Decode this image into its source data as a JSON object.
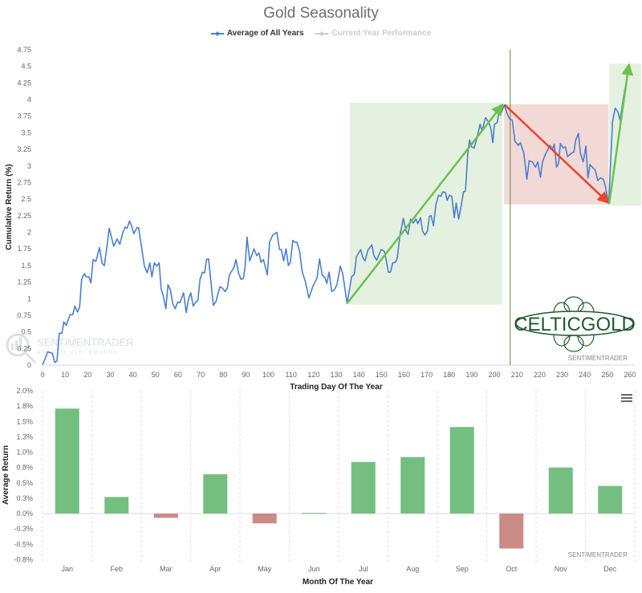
{
  "title": "Gold Seasonality",
  "legend": [
    {
      "label": "Average of All Years",
      "color": "#4a7fd0",
      "active": true
    },
    {
      "label": "Current Year Performance",
      "color": "#cccccc",
      "active": false
    }
  ],
  "menu_icon": "hamburger-menu-icon",
  "watermarks": {
    "sentimentrader_top": "SENTIMENTRADER",
    "sentimentrader_bottom": "SENTIMENTRADER",
    "logo_text": "SENTIMENTRADER",
    "logo_tagline": "Analysis over Emotion",
    "celticgold": "CELTICGOLD"
  },
  "chart_data": [
    {
      "type": "line",
      "title": "Gold Seasonality",
      "xlabel": "Trading Day Of The Year",
      "ylabel": "Cumulative Return (%)",
      "xlim": [
        0,
        260
      ],
      "ylim": [
        0,
        4.75
      ],
      "xticks": [
        "0",
        "10",
        "20",
        "30",
        "40",
        "50",
        "60",
        "70",
        "80",
        "90",
        "100",
        "110",
        "120",
        "130",
        "140",
        "150",
        "160",
        "170",
        "180",
        "190",
        "200",
        "210",
        "220",
        "230",
        "240",
        "250",
        "260"
      ],
      "yticks": [
        "0",
        "0.25",
        "0.5",
        "0.75",
        "1",
        "1.25",
        "1.5",
        "1.75",
        "2",
        "2.25",
        "2.5",
        "2.75",
        "3",
        "3.25",
        "3.5",
        "3.75",
        "4",
        "4.25",
        "4.5",
        "4.75"
      ],
      "grid": false,
      "legend_position": "top",
      "series": [
        {
          "name": "Average of All Years",
          "color": "#4a7fd0",
          "points": [
            [
              0,
              0
            ],
            [
              2.3,
              0.2
            ],
            [
              4.3,
              0.18
            ],
            [
              5.4,
              0.04
            ],
            [
              6.4,
              0.06
            ],
            [
              7.4,
              0.48
            ],
            [
              8.6,
              0.48
            ],
            [
              9.4,
              0.65
            ],
            [
              10.5,
              0.6
            ],
            [
              12.2,
              0.76
            ],
            [
              13.4,
              0.76
            ],
            [
              14.3,
              0.89
            ],
            [
              15.5,
              0.8
            ],
            [
              16.4,
              0.87
            ],
            [
              17.3,
              1.29
            ],
            [
              18.5,
              1.38
            ],
            [
              19.3,
              1.33
            ],
            [
              20.5,
              1.33
            ],
            [
              21.4,
              1.24
            ],
            [
              22.4,
              1.59
            ],
            [
              23.6,
              1.56
            ],
            [
              25.2,
              1.77
            ],
            [
              26.4,
              1.53
            ],
            [
              27.4,
              1.5
            ],
            [
              29.5,
              2.06
            ],
            [
              31.5,
              1.79
            ],
            [
              33,
              1.9
            ],
            [
              34.2,
              1.82
            ],
            [
              35.6,
              2
            ],
            [
              36.6,
              2.08
            ],
            [
              37.4,
              2.06
            ],
            [
              38.5,
              2.17
            ],
            [
              39.4,
              2.1
            ],
            [
              40.4,
              1.98
            ],
            [
              41.8,
              2.07
            ],
            [
              42.5,
              2.07
            ],
            [
              45.1,
              1.49
            ],
            [
              46.3,
              1.39
            ],
            [
              47.5,
              1.54
            ],
            [
              48.4,
              1.33
            ],
            [
              49.5,
              1.54
            ],
            [
              50.6,
              1.49
            ],
            [
              51.6,
              1.54
            ],
            [
              52.5,
              1.15
            ],
            [
              53.4,
              1.05
            ],
            [
              54.6,
              0.85
            ],
            [
              55.5,
              1.21
            ],
            [
              56.6,
              1.13
            ],
            [
              57.6,
              0.93
            ],
            [
              58.7,
              0.85
            ],
            [
              59.8,
              0.95
            ],
            [
              60.8,
              0.94
            ],
            [
              62.4,
              1.09
            ],
            [
              63.6,
              0.79
            ],
            [
              64.6,
              0.99
            ],
            [
              65.6,
              1.09
            ],
            [
              66.7,
              0.89
            ],
            [
              67.8,
              0.95
            ],
            [
              68.8,
              0.98
            ],
            [
              69.7,
              1.29
            ],
            [
              70.8,
              1.4
            ],
            [
              71.7,
              1.39
            ],
            [
              72.6,
              1.59
            ],
            [
              73.5,
              1.6
            ],
            [
              75.6,
              0.9
            ],
            [
              76.8,
              0.96
            ],
            [
              78.5,
              1.18
            ],
            [
              79.6,
              1.16
            ],
            [
              80.8,
              1.11
            ],
            [
              81.8,
              1.16
            ],
            [
              82.7,
              1.36
            ],
            [
              84.7,
              1.47
            ],
            [
              85.6,
              1.59
            ],
            [
              86.8,
              1.38
            ],
            [
              87.9,
              1.29
            ],
            [
              88.9,
              1.31
            ],
            [
              89.7,
              1.49
            ],
            [
              90.5,
              1.93
            ],
            [
              91.7,
              1.57
            ],
            [
              93.6,
              1.75
            ],
            [
              94.8,
              1.65
            ],
            [
              95.8,
              1.69
            ],
            [
              96.7,
              1.55
            ],
            [
              97.8,
              1.59
            ],
            [
              99.5,
              1.36
            ],
            [
              100.5,
              1.85
            ],
            [
              101.9,
              1.96
            ],
            [
              103.7,
              2
            ],
            [
              104.9,
              1.74
            ],
            [
              105.7,
              1.74
            ],
            [
              106.7,
              1.57
            ],
            [
              107.8,
              1.75
            ],
            [
              108.8,
              1.5
            ],
            [
              109.7,
              1.55
            ],
            [
              110.8,
              1.88
            ],
            [
              111.6,
              1.85
            ],
            [
              112.6,
              1.85
            ],
            [
              113.8,
              1.71
            ],
            [
              114.9,
              1.41
            ],
            [
              116.4,
              1.25
            ],
            [
              117.9,
              1.01
            ],
            [
              119.7,
              1.19
            ],
            [
              121.5,
              1.31
            ],
            [
              122.6,
              1.6
            ],
            [
              123.8,
              1.36
            ],
            [
              125,
              1.32
            ],
            [
              125.8,
              1.23
            ],
            [
              126.8,
              1.4
            ],
            [
              128,
              1.11
            ],
            [
              129.1,
              1.13
            ],
            [
              130.3,
              1.21
            ],
            [
              131.8,
              1.49
            ],
            [
              132.9,
              1.37
            ],
            [
              134.8,
              0.93
            ],
            [
              136.8,
              1.33
            ],
            [
              138,
              1.37
            ],
            [
              138.9,
              1.63
            ],
            [
              140.8,
              1.74
            ],
            [
              141.9,
              1.61
            ],
            [
              142.8,
              1.57
            ],
            [
              144,
              1.73
            ],
            [
              145.7,
              1.81
            ],
            [
              146.7,
              1.65
            ],
            [
              147.9,
              1.58
            ],
            [
              149.9,
              1.74
            ],
            [
              151.4,
              1.71
            ],
            [
              153.1,
              1.4
            ],
            [
              154,
              1.4
            ],
            [
              155,
              1.54
            ],
            [
              156.2,
              1.55
            ],
            [
              157,
              1.61
            ],
            [
              158.2,
              1.96
            ],
            [
              159.7,
              2.21
            ],
            [
              160.9,
              2.02
            ],
            [
              161.8,
              1.97
            ],
            [
              162.9,
              2.2
            ],
            [
              164.1,
              2.14
            ],
            [
              165.3,
              2.2
            ],
            [
              166.1,
              2.13
            ],
            [
              167.3,
              2.22
            ],
            [
              168.2,
              2.02
            ],
            [
              169.2,
              1.96
            ],
            [
              170.4,
              2.02
            ],
            [
              171.2,
              2.24
            ],
            [
              172,
              2.25
            ],
            [
              173,
              2.1
            ],
            [
              174.1,
              2.42
            ],
            [
              175.3,
              2.56
            ],
            [
              176.3,
              2.54
            ],
            [
              177.1,
              2.61
            ],
            [
              178.3,
              2.6
            ],
            [
              179.1,
              2.48
            ],
            [
              180.1,
              2.56
            ],
            [
              181.2,
              2.54
            ],
            [
              182.2,
              2.22
            ],
            [
              183.1,
              2.44
            ],
            [
              184.2,
              2.2
            ],
            [
              185.4,
              2.42
            ],
            [
              186.3,
              2.61
            ],
            [
              187.2,
              2.62
            ],
            [
              188.2,
              3.19
            ],
            [
              189,
              3.39
            ],
            [
              189.8,
              3.29
            ],
            [
              191,
              3.27
            ],
            [
              192.2,
              3.41
            ],
            [
              193.7,
              3.63
            ],
            [
              194.5,
              3.53
            ],
            [
              196.1,
              3.73
            ],
            [
              197.6,
              3.65
            ],
            [
              198.5,
              3.55
            ],
            [
              199.3,
              3.35
            ],
            [
              200,
              3.63
            ],
            [
              201.2,
              3.65
            ],
            [
              202,
              3.81
            ],
            [
              203.2,
              3.81
            ],
            [
              204.4,
              3.92
            ],
            [
              205.6,
              3.79
            ],
            [
              206.7,
              3.71
            ],
            [
              207.9,
              3.69
            ],
            [
              209.1,
              3.37
            ],
            [
              210.6,
              3.31
            ],
            [
              211.5,
              3.35
            ],
            [
              213,
              3.19
            ],
            [
              214.4,
              2.8
            ],
            [
              215.4,
              3.08
            ],
            [
              216.8,
              3.06
            ],
            [
              218.2,
              2.98
            ],
            [
              219.2,
              3.06
            ],
            [
              220.4,
              2.83
            ],
            [
              221.3,
              3.06
            ],
            [
              222.5,
              3.17
            ],
            [
              223.7,
              3.25
            ],
            [
              224.5,
              3.31
            ],
            [
              225.7,
              3.25
            ],
            [
              226.5,
              3.33
            ],
            [
              227.5,
              2.98
            ],
            [
              228.4,
              3.04
            ],
            [
              229.2,
              3.34
            ],
            [
              230.4,
              3.27
            ],
            [
              231.4,
              3.29
            ],
            [
              232.4,
              3.14
            ],
            [
              234,
              3.19
            ],
            [
              235.2,
              3.21
            ],
            [
              236,
              3.39
            ],
            [
              237.2,
              3.49
            ],
            [
              238.1,
              3.19
            ],
            [
              239.3,
              3.06
            ],
            [
              240.5,
              3.3
            ],
            [
              241.4,
              2.82
            ],
            [
              242.3,
              3.02
            ],
            [
              243.4,
              2.98
            ],
            [
              244.6,
              2.94
            ],
            [
              245.8,
              2.78
            ],
            [
              247,
              2.82
            ],
            [
              248.2,
              2.8
            ],
            [
              249,
              2.71
            ],
            [
              250.6,
              2.43
            ],
            [
              252.3,
              3.67
            ],
            [
              253.5,
              3.87
            ],
            [
              254.7,
              3.81
            ],
            [
              255.6,
              3.69
            ],
            [
              257.7,
              4.15
            ],
            [
              258.3,
              4.21
            ],
            [
              259.2,
              4.5
            ],
            [
              259.7,
              4.54
            ]
          ]
        }
      ],
      "annotations": {
        "current_day_marker": 207,
        "marker_color": "#5c8a3c",
        "zones": [
          {
            "x": [
              136,
              203.5
            ],
            "y": [
              0.91,
              3.95
            ],
            "color": "#e4f1e0"
          },
          {
            "x": [
              204.3,
              250.5
            ],
            "y": [
              2.42,
              3.93
            ],
            "color": "#f3d9d6"
          },
          {
            "x": [
              250.8,
              265
            ],
            "y": [
              2.4,
              4.54
            ],
            "color": "#e4f1e0"
          }
        ],
        "arrows": [
          {
            "from": [
              134.8,
              0.93
            ],
            "to": [
              203.5,
              3.92
            ],
            "color": "#6cc24a"
          },
          {
            "from": [
              204.6,
              3.92
            ],
            "to": [
              250.3,
              2.45
            ],
            "color": "#e8432d"
          },
          {
            "from": [
              250.8,
              2.43
            ],
            "to": [
              259.5,
              4.52
            ],
            "color": "#6cc24a"
          }
        ]
      }
    },
    {
      "type": "bar",
      "xlabel": "Month Of The Year",
      "ylabel": "Average Return",
      "categories": [
        "Jan",
        "Feb",
        "Mar",
        "Apr",
        "May",
        "Jun",
        "Jul",
        "Aug",
        "Sep",
        "Oct",
        "Nov",
        "Dec"
      ],
      "values": [
        1.71,
        0.27,
        -0.07,
        0.64,
        -0.16,
        0.01,
        0.84,
        0.92,
        1.41,
        -0.57,
        0.75,
        0.45
      ],
      "unit": "%",
      "ylim": [
        -0.75,
        2.0
      ],
      "yticks": [
        "2.0%",
        "1.8%",
        "1.5%",
        "1.3%",
        "1.0%",
        "0.8%",
        "0.5%",
        "0.3%",
        "0.0%",
        "-0.3%",
        "-0.5%",
        "-0.8%"
      ],
      "positive_color": "#74bf80",
      "negative_color": "#cc8b86",
      "grid": "vertical-dashed"
    }
  ]
}
